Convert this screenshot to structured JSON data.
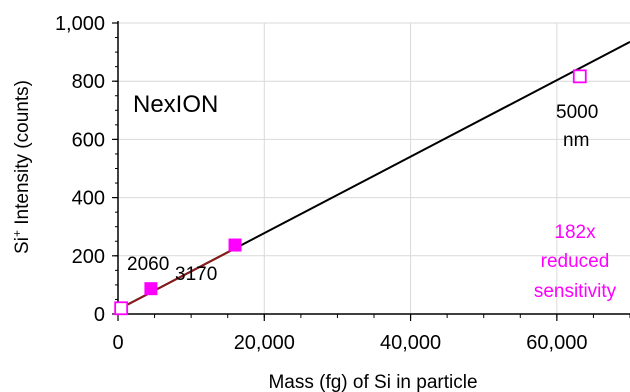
{
  "chart_data": {
    "type": "scatter",
    "title": "",
    "xlabel": "Mass (fg) of Si in particle",
    "ylabel_main": "Si",
    "ylabel_sup": "+",
    "ylabel_rest": " Intensity (counts)",
    "xlim": [
      0,
      70000
    ],
    "ylim": [
      0,
      1000
    ],
    "x_ticks": [
      0,
      20000,
      40000,
      60000
    ],
    "x_tick_labels": [
      "0",
      "20,000",
      "40,000",
      "60,000"
    ],
    "y_ticks": [
      0,
      200,
      400,
      600,
      800,
      1000
    ],
    "y_tick_labels": [
      "0",
      "200",
      "400",
      "600",
      "800",
      "1,000"
    ],
    "grid": true,
    "series": [
      {
        "marker": "filled-square",
        "color": "#ff00ff",
        "points": [
          {
            "x": 4500,
            "y": 87
          },
          {
            "x": 16000,
            "y": 237
          }
        ]
      },
      {
        "marker": "open-square",
        "color": "#ff00ff",
        "points": [
          {
            "x": 500,
            "y": 18
          },
          {
            "x": 63200,
            "y": 815
          }
        ]
      }
    ],
    "fit_line": {
      "color": "#000000",
      "x": [
        0,
        70000
      ],
      "y": [
        15,
        935
      ]
    },
    "overlap_segment": {
      "color": "#8b1a1a",
      "x": [
        500,
        16000
      ]
    },
    "annotations": {
      "instrument": "NexION",
      "label_2060": "2060",
      "label_3170": "3170",
      "label_5000": "5000",
      "label_nm": "nm",
      "note_line1": "182x",
      "note_line2": "reduced",
      "note_line3": "sensitivity",
      "note_color": "#ff00ff"
    }
  }
}
